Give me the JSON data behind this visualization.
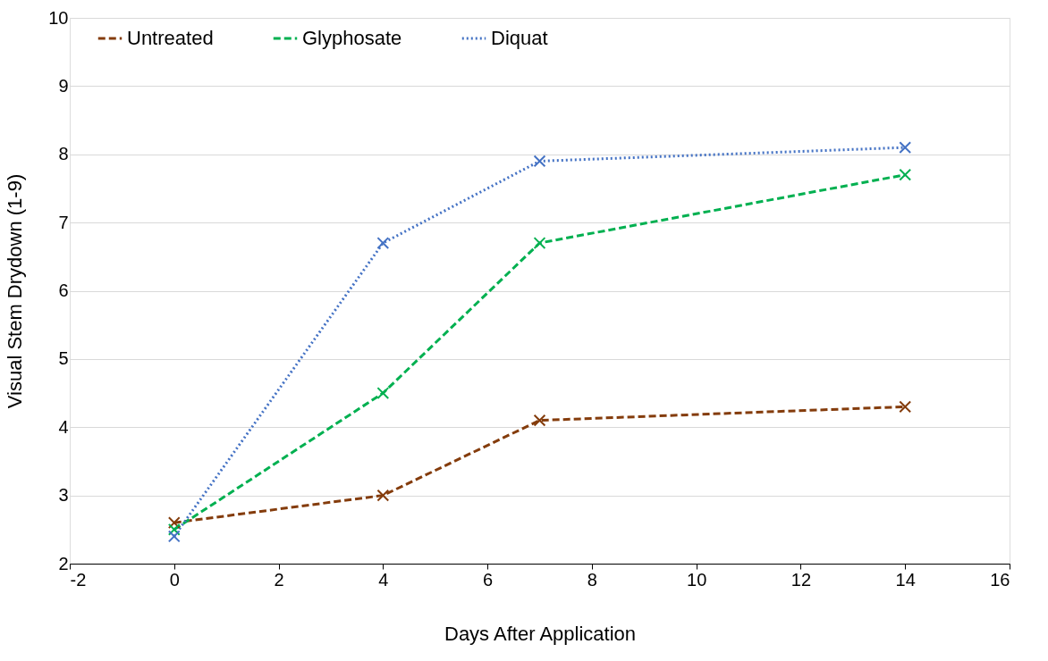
{
  "chart_data": {
    "type": "line",
    "xlabel": "Days After Application",
    "ylabel": "Visual Stem Drydown (1-9)",
    "x": [
      0,
      4,
      7,
      14
    ],
    "series": [
      {
        "name": "Untreated",
        "color": "#843c0c",
        "values": [
          2.6,
          3.0,
          4.1,
          4.3
        ],
        "line_style": "dashed"
      },
      {
        "name": "Glyphosate",
        "color": "#00b050",
        "values": [
          2.5,
          4.5,
          6.7,
          7.7
        ],
        "line_style": "dashed"
      },
      {
        "name": "Diquat",
        "color": "#4472c4",
        "values": [
          2.4,
          6.7,
          7.9,
          8.1
        ],
        "line_style": "dotted"
      }
    ],
    "xlim": [
      -2,
      16
    ],
    "xticks": [
      -2,
      0,
      2,
      4,
      6,
      8,
      10,
      12,
      14,
      16
    ],
    "ylim": [
      2,
      10
    ],
    "yticks": [
      2,
      3,
      4,
      5,
      6,
      7,
      8,
      9,
      10
    ],
    "grid": "y",
    "legend": "top",
    "marker": "cross"
  }
}
